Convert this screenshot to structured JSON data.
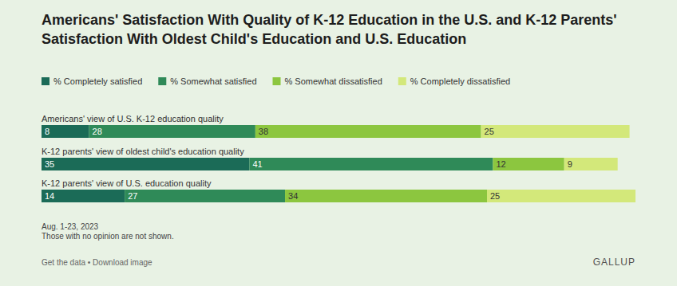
{
  "chart_data": {
    "type": "bar",
    "orientation": "horizontal",
    "stacked": true,
    "data_labels": true,
    "tick_labels": false,
    "grid": false,
    "legend": "top",
    "title": "Americans' Satisfaction With Quality of K-12 Education in the U.S. and K-12 Parents' Satisfaction With Oldest Child's Education and U.S. Education",
    "categories": [
      "Americans' view of U.S. K-12 education quality",
      "K-12 parents' view of oldest child's education quality",
      "K-12 parents' view of U.S. education quality"
    ],
    "xlim": [
      0,
      100
    ],
    "series": [
      {
        "name": "% Completely satisfied",
        "color": "#1b6b57",
        "values": [
          8,
          35,
          14
        ]
      },
      {
        "name": "% Somewhat satisfied",
        "color": "#2f8a58",
        "values": [
          28,
          41,
          27
        ]
      },
      {
        "name": "% Somewhat dissatisfied",
        "color": "#8cc63f",
        "values": [
          38,
          12,
          34
        ]
      },
      {
        "name": "% Completely dissatisfied",
        "color": "#d3e87a",
        "values": [
          25,
          9,
          25
        ]
      }
    ],
    "annotations": [
      "Aug. 1-23, 2023",
      "Those with no opinion are not shown.",
      "Get the data • Download image",
      "GALLUP"
    ]
  }
}
